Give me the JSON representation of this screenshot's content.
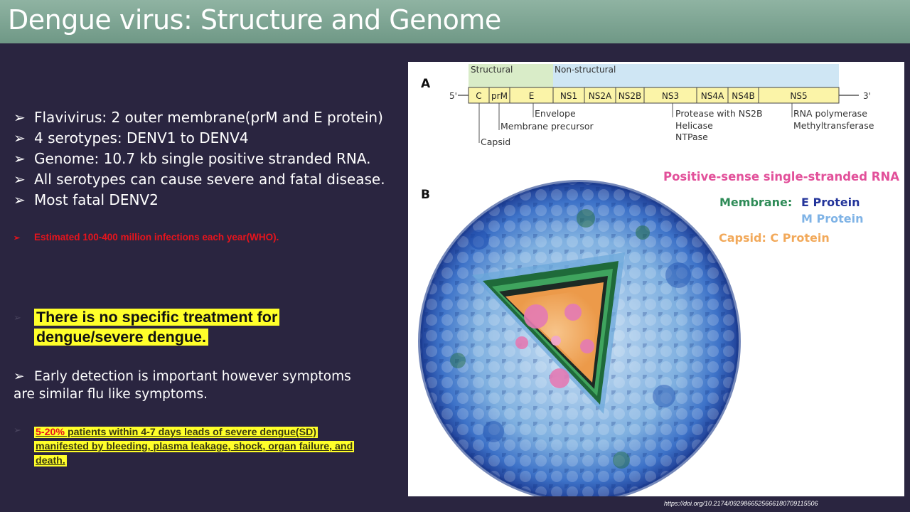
{
  "title": "Dengue virus: Structure and Genome",
  "bullets": [
    "Flavivirus: 2 outer membrane(prM and E protein)",
    "4 serotypes: DENV1 to DENV4",
    "Genome: 10.7 kb single positive stranded RNA.",
    "All serotypes can cause severe and fatal disease.",
    "Most fatal DENV2"
  ],
  "estimate": "Estimated 100-400 million infections each year(WHO).",
  "no_treatment": [
    "There is no specific treatment for",
    "dengue/severe dengue."
  ],
  "early_detection": [
    "Early detection is important however symptoms",
    "are similar flu like symptoms."
  ],
  "severe": {
    "percent": "5-20%",
    "line1_rest": " patients within 4-7 days leads of severe dengue(SD)",
    "line2": "manifested by bleeding, plasma leakage, shock, organ failure, and",
    "line3": "death."
  },
  "figure": {
    "panel_a": "A",
    "panel_b": "B",
    "structural": "Structural",
    "non_structural": "Non-structural",
    "five_prime": "5'",
    "three_prime": "3'",
    "genes": [
      "C",
      "prM",
      "E",
      "NS1",
      "NS2A",
      "NS2B",
      "NS3",
      "NS4A",
      "NS4B",
      "NS5"
    ],
    "envelope": "Envelope",
    "membrane_precursor": "Membrane precursor",
    "capsid": "Capsid",
    "protease": "Protease with NS2B",
    "helicase": "Helicase",
    "ntpase": "NTPase",
    "rna_polymerase": "RNA polymerase",
    "methyltransferase": "Methyltransferase",
    "rna_label": "Positive-sense single-stranded RNA",
    "membrane_label": "Membrane:",
    "e_protein": "E Protein",
    "m_protein": "M Protein",
    "capsid_label": "Capsid: C Protein"
  },
  "doi": "https://doi.org/10.2174/0929866525666180709115506",
  "colors": {
    "title_bar": "#7fa894",
    "background": "#2a2540",
    "highlight": "#ffff2a",
    "red": "#e8141c"
  }
}
